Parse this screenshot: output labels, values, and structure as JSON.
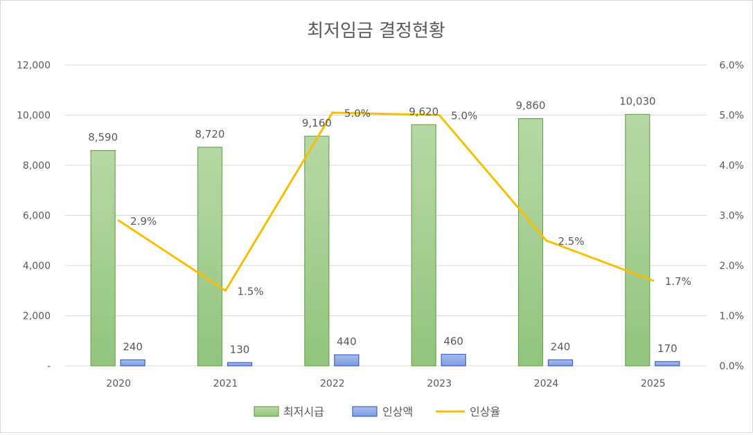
{
  "chart_data": {
    "type": "bar",
    "title": "최저임금 결정현황",
    "categories": [
      "2020",
      "2021",
      "2022",
      "2023",
      "2024",
      "2025"
    ],
    "series": [
      {
        "name": "최저시급",
        "kind": "bar",
        "axis": "left",
        "values": [
          8590,
          8720,
          9160,
          9620,
          9860,
          10030
        ],
        "labels": [
          "8,590",
          "8,720",
          "9,160",
          "9,620",
          "9,860",
          "10,030"
        ]
      },
      {
        "name": "인상액",
        "kind": "bar",
        "axis": "left",
        "values": [
          240,
          130,
          440,
          460,
          240,
          170
        ],
        "labels": [
          "240",
          "130",
          "440",
          "460",
          "240",
          "170"
        ]
      },
      {
        "name": "인상율",
        "kind": "line",
        "axis": "right",
        "values": [
          2.9,
          1.5,
          5.05,
          5.0,
          2.5,
          1.7
        ],
        "labels": [
          "2.9%",
          "1.5%",
          "5.0%",
          "5.0%",
          "2.5%",
          "1.7%"
        ]
      }
    ],
    "y_left": {
      "min": 0,
      "max": 12000,
      "ticks": [
        "-",
        "2,000",
        "4,000",
        "6,000",
        "8,000",
        "10,000",
        "12,000"
      ]
    },
    "y_right": {
      "min": 0,
      "max": 6,
      "ticks": [
        "0.0%",
        "1.0%",
        "2.0%",
        "3.0%",
        "4.0%",
        "5.0%",
        "6.0%"
      ]
    },
    "grid": true,
    "legend": "bottom",
    "colors": {
      "bar1_fill_top": "#b7d8a6",
      "bar1_fill_bottom": "#93c47d",
      "bar1_stroke": "#6aa84f",
      "bar2_fill_top": "#a9bdf0",
      "bar2_fill_bottom": "#7d9be0",
      "bar2_stroke": "#3f5fbf",
      "line": "#f6c000",
      "grid": "#d9d9d9",
      "text": "#595959"
    }
  }
}
